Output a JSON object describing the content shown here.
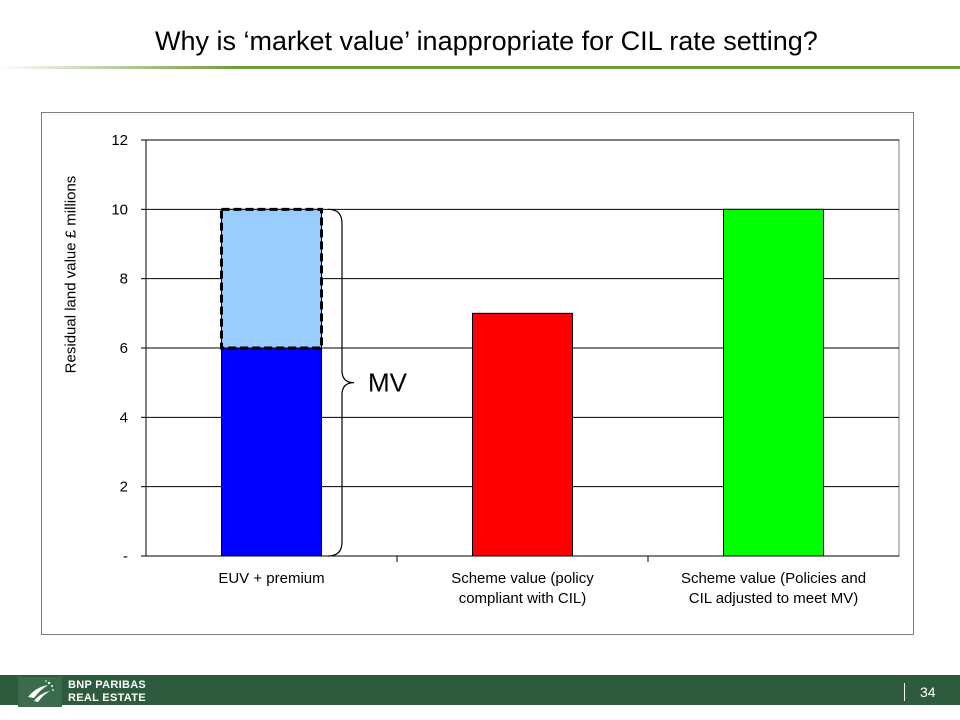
{
  "title": "Why is ‘market value’ inappropriate for CIL rate setting?",
  "colors": {
    "accent": "#6f9a3a",
    "footer": "#2e5a3e",
    "euv": "#0000ff",
    "premium": "#99ccff",
    "scheme_cil": "#ff0000",
    "scheme_mv": "#00ff00"
  },
  "chart_data": {
    "type": "bar",
    "stacked": true,
    "categories": [
      "EUV + premium",
      "Scheme value (policy compliant with CIL)",
      "Scheme value (Policies and CIL adjusted to meet MV)"
    ],
    "category_lines": [
      [
        "EUV + premium"
      ],
      [
        "Scheme value (policy",
        "compliant with CIL)"
      ],
      [
        "Scheme value (Policies and",
        "CIL adjusted to meet MV)"
      ]
    ],
    "series": [
      {
        "values": [
          6,
          7,
          10
        ]
      },
      {
        "values": [
          4,
          0,
          0
        ]
      }
    ],
    "ylabel": "Residual land value £ millions",
    "ylim": [
      0,
      12
    ],
    "yticks": [
      0,
      2,
      4,
      6,
      8,
      10,
      12
    ],
    "ytick_labels": [
      "-",
      "2",
      "4",
      "6",
      "8",
      "10",
      "12"
    ],
    "grid": true,
    "annotation": {
      "text": "MV",
      "from": 0,
      "to": 10
    }
  },
  "footer": {
    "brand_line1": "BNP PARIBAS",
    "brand_line2": "REAL ESTATE",
    "page_number": "34"
  }
}
